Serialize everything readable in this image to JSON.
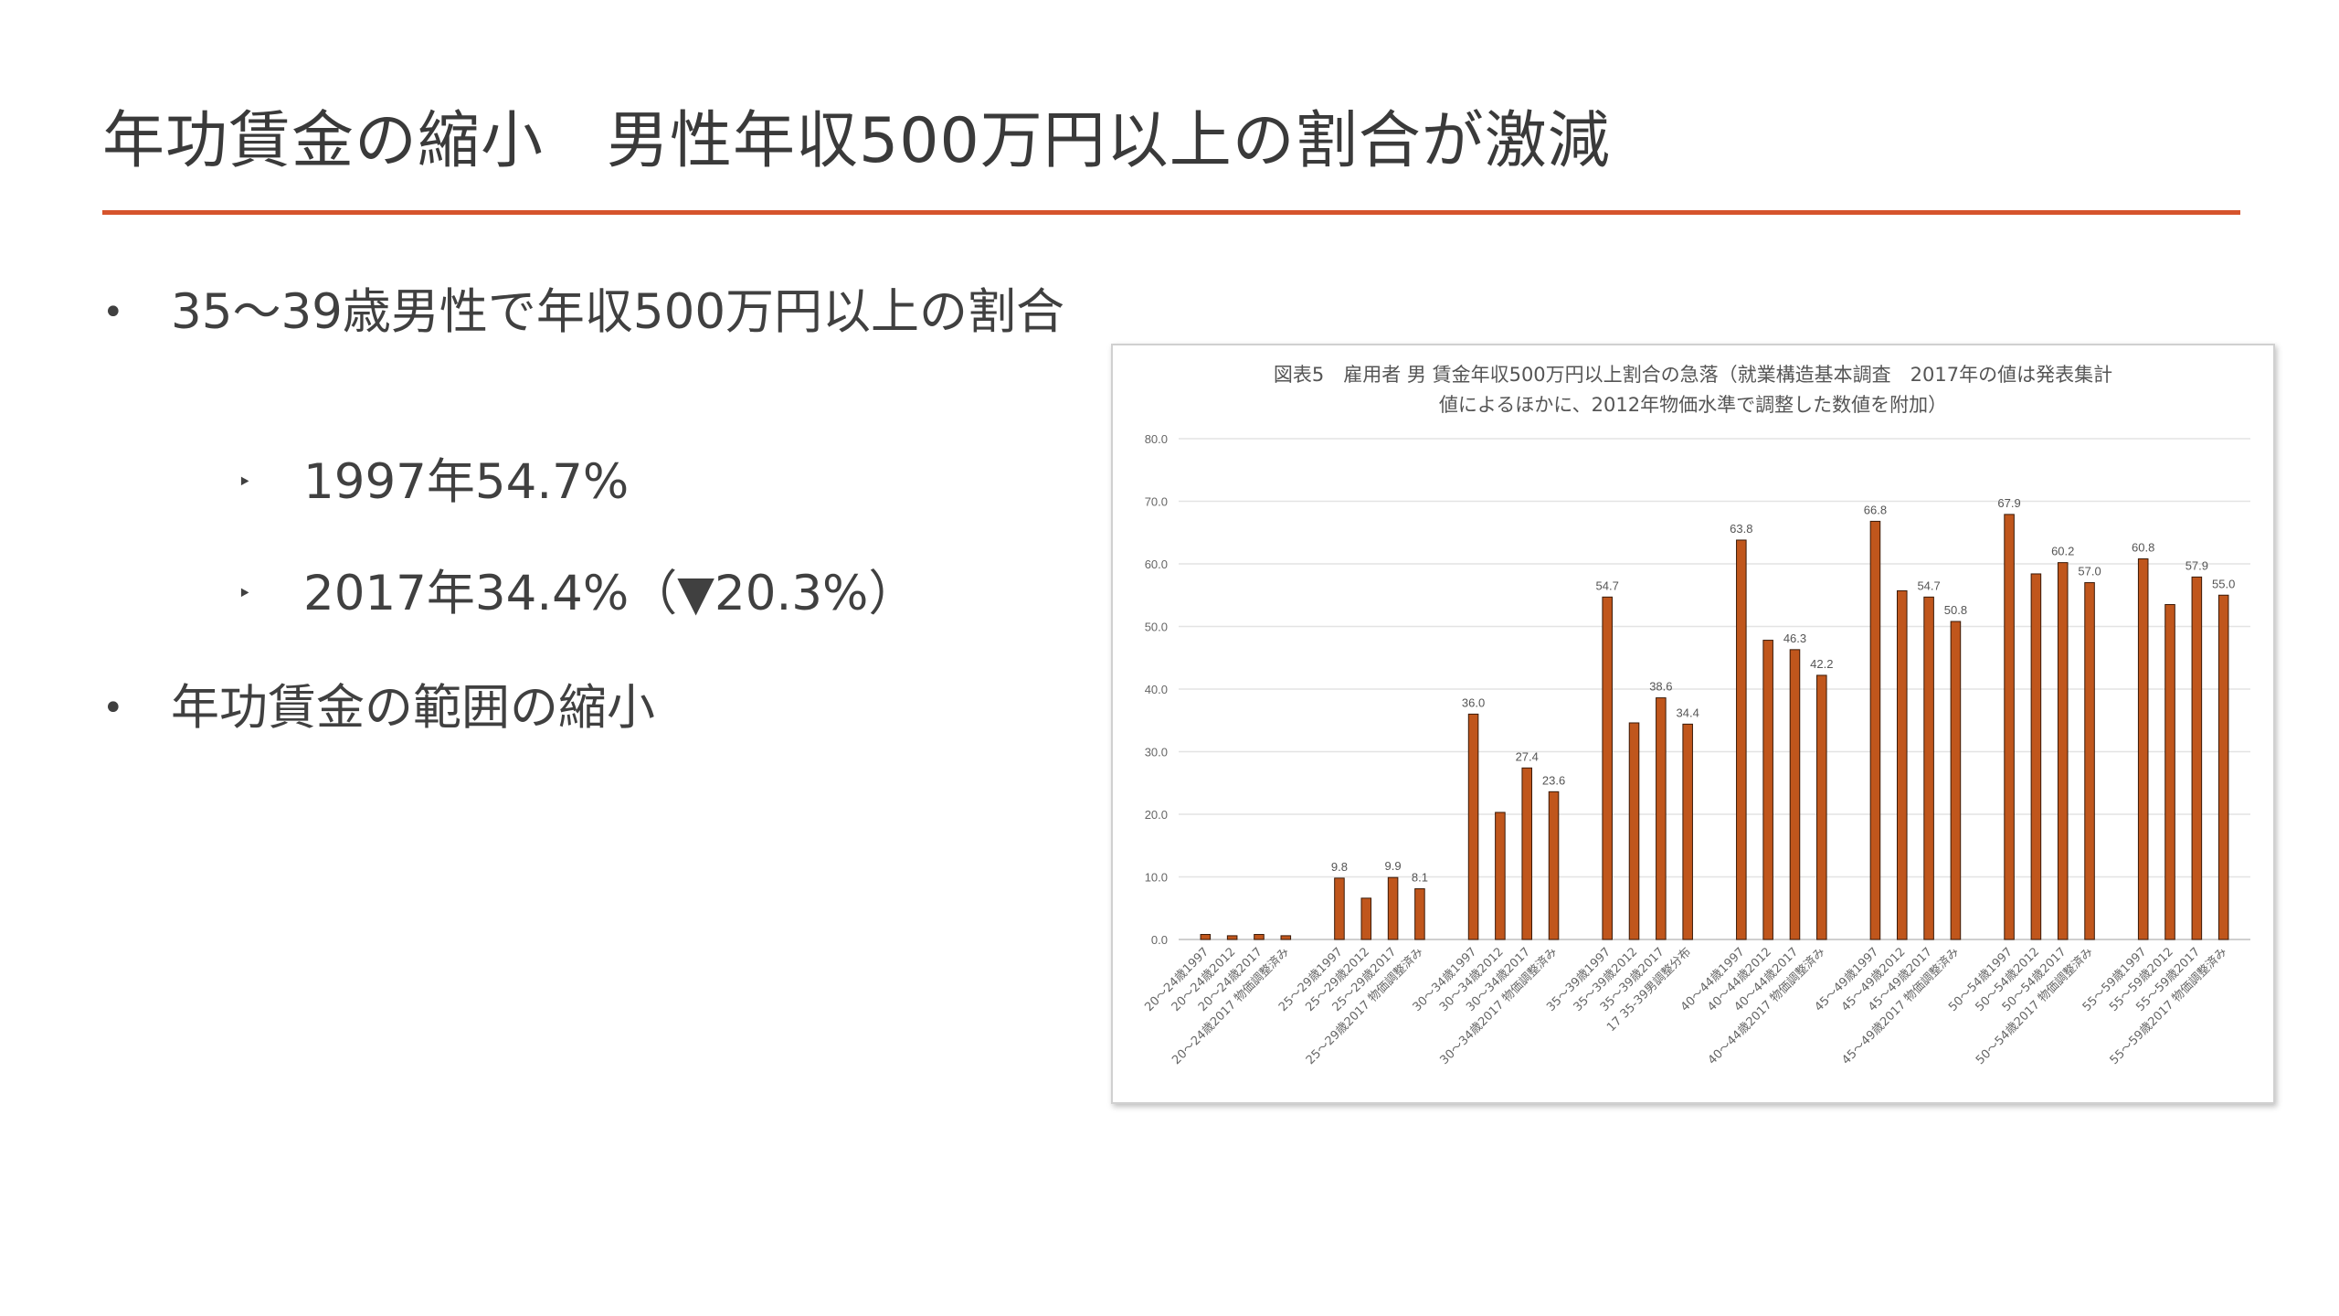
{
  "slide": {
    "title": "年功賃金の縮小　男性年収500万円以上の割合が激減",
    "accent_color": "#d6542c",
    "bullets": [
      {
        "text": "35〜39歳男性で年収500万円以上の割合"
      },
      {
        "text": "年功賃金の範囲の縮小"
      }
    ],
    "sub_bullets": [
      {
        "text": "1997年54.7%"
      },
      {
        "text": "2017年34.4%（▼20.3%）"
      }
    ],
    "bullet_glyph": "•",
    "sub_bullet_glyph": "‣"
  },
  "chart_data": {
    "type": "bar",
    "title_line1": "図表5　雇用者 男 賃金年収500万円以上割合の急落（就業構造基本調査　2017年の値は発表集計",
    "title_line2": "値によるほかに、2012年物価水準で調整した数値を附加）",
    "ylim": [
      0,
      80
    ],
    "yticks": [
      "0.0",
      "10.0",
      "20.0",
      "30.0",
      "40.0",
      "50.0",
      "60.0",
      "70.0",
      "80.0"
    ],
    "grid": true,
    "bar_color": "#c0561c",
    "groups": [
      {
        "categories": [
          "20〜24歳1997",
          "20〜24歳2012",
          "20〜24歳2017",
          "20〜24歳2017 物価調整済み"
        ],
        "values": [
          0.8,
          0.6,
          0.8,
          0.6
        ],
        "labels": [
          "",
          "",
          "",
          ""
        ]
      },
      {
        "categories": [
          "25〜29歳1997",
          "25〜29歳2012",
          "25〜29歳2017",
          "25〜29歳2017 物価調整済み"
        ],
        "values": [
          9.8,
          6.6,
          9.9,
          8.1
        ],
        "labels": [
          "9.8",
          "",
          "9.9",
          "8.1"
        ]
      },
      {
        "categories": [
          "30〜34歳1997",
          "30〜34歳2012",
          "30〜34歳2017",
          "30〜34歳2017 物価調整済み"
        ],
        "values": [
          36.0,
          20.3,
          27.4,
          23.6
        ],
        "labels": [
          "36.0",
          "",
          "27.4",
          "23.6"
        ]
      },
      {
        "categories": [
          "35〜39歳1997",
          "35〜39歳2012",
          "35〜39歳2017",
          "17 35-39男調整分布"
        ],
        "values": [
          54.7,
          34.6,
          38.6,
          34.4
        ],
        "labels": [
          "54.7",
          "",
          "38.6",
          "34.4"
        ]
      },
      {
        "categories": [
          "40〜44歳1997",
          "40〜44歳2012",
          "40〜44歳2017",
          "40〜44歳2017 物価調整済み"
        ],
        "values": [
          63.8,
          47.8,
          46.3,
          42.2
        ],
        "labels": [
          "63.8",
          "",
          "46.3",
          "42.2"
        ]
      },
      {
        "categories": [
          "45〜49歳1997",
          "45〜49歳2012",
          "45〜49歳2017",
          "45〜49歳2017 物価調整済み"
        ],
        "values": [
          66.8,
          55.7,
          54.7,
          50.8
        ],
        "labels": [
          "66.8",
          "",
          "54.7",
          "50.8"
        ]
      },
      {
        "categories": [
          "50〜54歳1997",
          "50〜54歳2012",
          "50〜54歳2017",
          "50〜54歳2017 物価調整済み"
        ],
        "values": [
          67.9,
          58.4,
          60.2,
          57.0
        ],
        "labels": [
          "67.9",
          "",
          "60.2",
          "57.0"
        ]
      },
      {
        "categories": [
          "55〜59歳1997",
          "55〜59歳2012",
          "55〜59歳2017",
          "55〜59歳2017 物価調整済み"
        ],
        "values": [
          60.8,
          53.5,
          57.9,
          55.0
        ],
        "labels": [
          "60.8",
          "",
          "57.9",
          "55.0"
        ]
      }
    ]
  }
}
